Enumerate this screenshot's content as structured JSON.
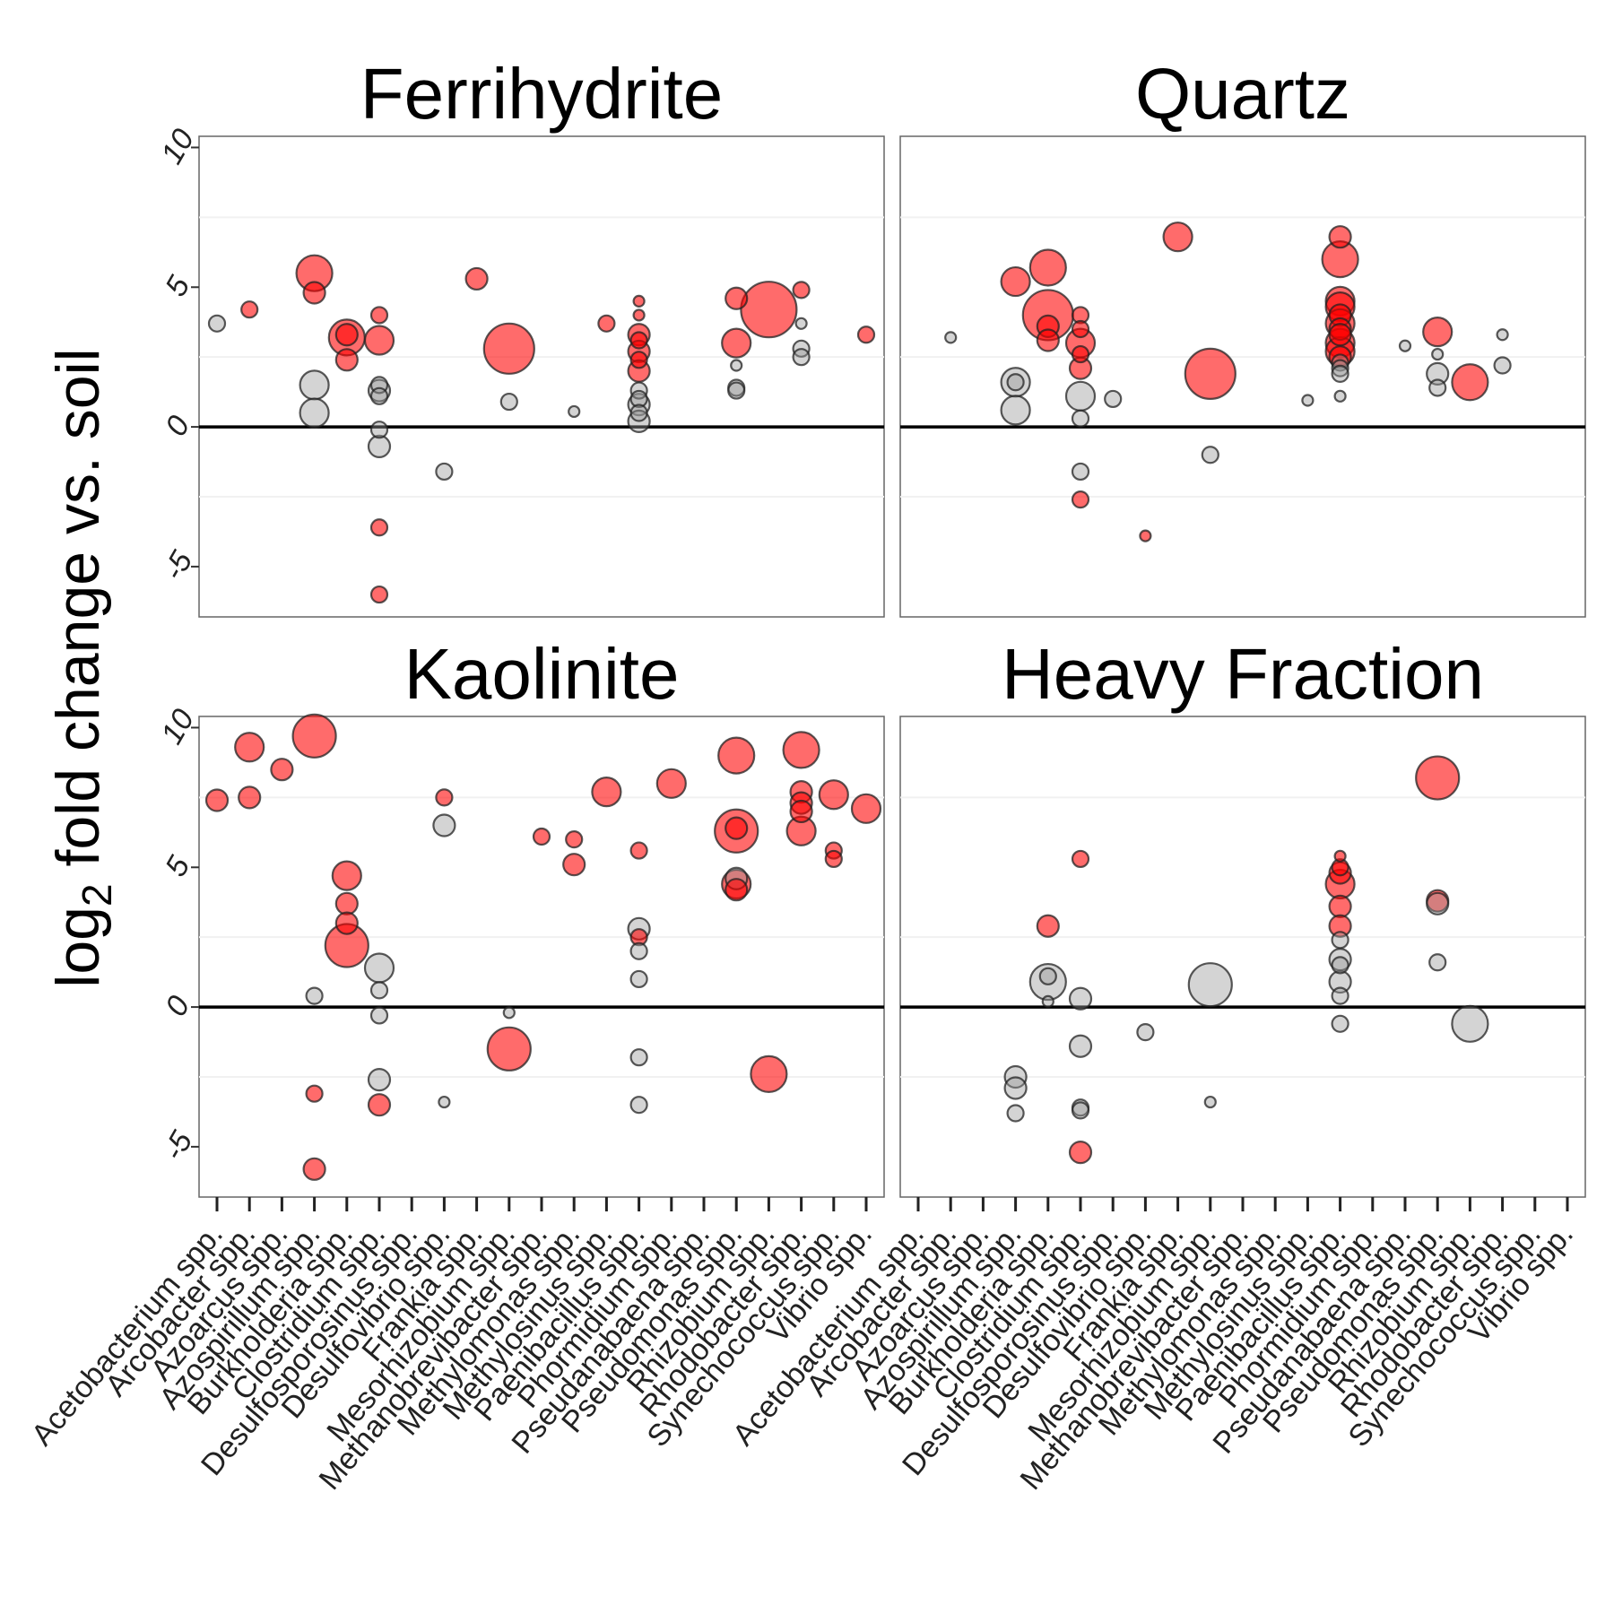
{
  "chart_data": {
    "type": "scatter",
    "y_axis_label": {
      "prefix": "log",
      "subscript": "2",
      "suffix": " fold change vs. soil"
    },
    "ylim": [
      -6.8,
      10.4
    ],
    "yticks": [
      -5,
      0,
      5,
      10
    ],
    "gridlines_minor": [
      -2.5,
      2.5,
      7.5
    ],
    "categories": [
      "Acetobacterium spp.",
      "Arcobacter spp.",
      "Azoarcus spp.",
      "Azospirillum spp.",
      "Burkholderia spp.",
      "Clostridium spp.",
      "Desulfosporosinus spp.",
      "Desulfovibrio spp.",
      "Frankia spp.",
      "Mesorhizobium spp.",
      "Methanobrevibacter spp.",
      "Methylomonas spp.",
      "Methylosinus spp.",
      "Paenibacillus spp.",
      "Phormidium spp.",
      "Pseudanabaena spp.",
      "Pseudomonas spp.",
      "Rhizobium spp.",
      "Rhodobacter spp.",
      "Synechococcus spp.",
      "Vibrio spp."
    ],
    "colors": {
      "significant": "#ff0000",
      "not_significant": "#999999"
    },
    "panels": [
      {
        "title": "Ferrihydrite",
        "points": [
          [
            0,
            3.7,
            1,
            0
          ],
          [
            1,
            4.2,
            1,
            1
          ],
          [
            3,
            5.5,
            4,
            1
          ],
          [
            3,
            4.8,
            2,
            1
          ],
          [
            3,
            1.5,
            3,
            0
          ],
          [
            3,
            0.5,
            3,
            0
          ],
          [
            4,
            3.2,
            4,
            1
          ],
          [
            4,
            3.3,
            2,
            1
          ],
          [
            4,
            2.4,
            2,
            1
          ],
          [
            5,
            4.0,
            1,
            1
          ],
          [
            5,
            3.1,
            3,
            1
          ],
          [
            5,
            1.5,
            1,
            0
          ],
          [
            5,
            1.3,
            2,
            0
          ],
          [
            5,
            1.1,
            1,
            0
          ],
          [
            5,
            -0.1,
            1,
            0
          ],
          [
            5,
            -0.7,
            2,
            0
          ],
          [
            5,
            -3.6,
            1,
            1
          ],
          [
            5,
            -6.0,
            1,
            1
          ],
          [
            7,
            -1.6,
            1,
            0
          ],
          [
            8,
            5.3,
            2,
            1
          ],
          [
            9,
            2.8,
            6,
            1
          ],
          [
            9,
            0.9,
            1,
            0
          ],
          [
            11,
            0.55,
            0,
            0
          ],
          [
            12,
            3.7,
            1,
            1
          ],
          [
            13,
            4.5,
            0,
            1
          ],
          [
            13,
            4.0,
            0,
            1
          ],
          [
            13,
            3.3,
            2,
            1
          ],
          [
            13,
            3.1,
            1,
            1
          ],
          [
            13,
            2.7,
            2,
            1
          ],
          [
            13,
            2.4,
            1,
            1
          ],
          [
            13,
            2.0,
            2,
            1
          ],
          [
            13,
            1.3,
            1,
            0
          ],
          [
            13,
            1.0,
            1,
            0
          ],
          [
            13,
            0.8,
            2,
            0
          ],
          [
            13,
            0.5,
            1,
            0
          ],
          [
            13,
            0.2,
            2,
            0
          ],
          [
            16,
            4.6,
            2,
            1
          ],
          [
            16,
            3.0,
            3,
            1
          ],
          [
            16,
            2.2,
            0,
            0
          ],
          [
            16,
            1.4,
            1,
            0
          ],
          [
            16,
            1.3,
            1,
            0
          ],
          [
            17,
            4.2,
            7,
            1
          ],
          [
            18,
            4.9,
            1,
            1
          ],
          [
            18,
            3.7,
            0,
            0
          ],
          [
            18,
            2.8,
            1,
            0
          ],
          [
            18,
            2.5,
            1,
            0
          ],
          [
            20,
            3.3,
            1,
            1
          ]
        ]
      },
      {
        "title": "Quartz",
        "points": [
          [
            1,
            3.2,
            0,
            0
          ],
          [
            3,
            5.2,
            3,
            1
          ],
          [
            3,
            1.6,
            3,
            0
          ],
          [
            3,
            0.6,
            3,
            0
          ],
          [
            3,
            1.6,
            1,
            0
          ],
          [
            4,
            5.7,
            4,
            1
          ],
          [
            4,
            4.0,
            6,
            1
          ],
          [
            4,
            3.6,
            2,
            1
          ],
          [
            4,
            3.1,
            2,
            1
          ],
          [
            5,
            4.0,
            1,
            1
          ],
          [
            5,
            3.5,
            1,
            1
          ],
          [
            5,
            3.0,
            3,
            1
          ],
          [
            5,
            2.6,
            1,
            1
          ],
          [
            5,
            2.1,
            2,
            1
          ],
          [
            5,
            1.1,
            3,
            0
          ],
          [
            5,
            0.3,
            1,
            0
          ],
          [
            5,
            -1.6,
            1,
            0
          ],
          [
            5,
            -2.6,
            1,
            1
          ],
          [
            6,
            1.0,
            1,
            0
          ],
          [
            7,
            -3.9,
            0,
            1
          ],
          [
            8,
            6.8,
            3,
            1
          ],
          [
            9,
            1.9,
            6,
            1
          ],
          [
            9,
            -1.0,
            1,
            0
          ],
          [
            12,
            0.95,
            0,
            0
          ],
          [
            13,
            6.8,
            2,
            1
          ],
          [
            13,
            6.0,
            4,
            1
          ],
          [
            13,
            4.5,
            3,
            1
          ],
          [
            13,
            4.3,
            3,
            1
          ],
          [
            13,
            4.0,
            2,
            1
          ],
          [
            13,
            3.7,
            3,
            1
          ],
          [
            13,
            3.5,
            2,
            1
          ],
          [
            13,
            3.3,
            2,
            1
          ],
          [
            13,
            3.0,
            3,
            1
          ],
          [
            13,
            2.7,
            3,
            1
          ],
          [
            13,
            2.5,
            2,
            1
          ],
          [
            13,
            2.3,
            1,
            0
          ],
          [
            13,
            2.1,
            1,
            0
          ],
          [
            13,
            1.9,
            1,
            0
          ],
          [
            13,
            1.1,
            0,
            0
          ],
          [
            15,
            2.9,
            0,
            0
          ],
          [
            16,
            3.4,
            3,
            1
          ],
          [
            16,
            2.6,
            0,
            0
          ],
          [
            16,
            1.9,
            2,
            0
          ],
          [
            16,
            1.4,
            1,
            0
          ],
          [
            17,
            1.6,
            4,
            1
          ],
          [
            18,
            3.3,
            0,
            0
          ],
          [
            18,
            2.2,
            1,
            0
          ]
        ]
      },
      {
        "title": "Kaolinite",
        "points": [
          [
            0,
            7.4,
            2,
            1
          ],
          [
            1,
            9.3,
            3,
            1
          ],
          [
            1,
            7.5,
            2,
            1
          ],
          [
            2,
            8.5,
            2,
            1
          ],
          [
            3,
            9.7,
            5,
            1
          ],
          [
            3,
            0.4,
            1,
            0
          ],
          [
            3,
            -3.1,
            1,
            1
          ],
          [
            3,
            -5.8,
            2,
            1
          ],
          [
            4,
            4.7,
            3,
            1
          ],
          [
            4,
            3.7,
            2,
            1
          ],
          [
            4,
            3.0,
            2,
            1
          ],
          [
            4,
            2.2,
            5,
            1
          ],
          [
            5,
            1.4,
            3,
            0
          ],
          [
            5,
            0.6,
            1,
            0
          ],
          [
            5,
            -0.3,
            1,
            0
          ],
          [
            5,
            -2.6,
            2,
            0
          ],
          [
            5,
            -3.5,
            2,
            1
          ],
          [
            7,
            7.5,
            1,
            1
          ],
          [
            7,
            6.5,
            2,
            0
          ],
          [
            7,
            -3.4,
            0,
            0
          ],
          [
            9,
            -0.2,
            0,
            0
          ],
          [
            9,
            -1.5,
            5,
            1
          ],
          [
            10,
            6.1,
            1,
            1
          ],
          [
            11,
            6.0,
            1,
            1
          ],
          [
            11,
            5.1,
            2,
            1
          ],
          [
            12,
            7.7,
            3,
            1
          ],
          [
            13,
            5.6,
            1,
            1
          ],
          [
            13,
            2.8,
            2,
            0
          ],
          [
            13,
            2.5,
            1,
            1
          ],
          [
            13,
            2.0,
            1,
            0
          ],
          [
            13,
            1.0,
            1,
            0
          ],
          [
            13,
            -1.8,
            1,
            0
          ],
          [
            13,
            -3.5,
            1,
            0
          ],
          [
            14,
            8.0,
            3,
            1
          ],
          [
            16,
            9.0,
            4,
            1
          ],
          [
            16,
            6.4,
            2,
            1
          ],
          [
            16,
            6.3,
            5,
            1
          ],
          [
            16,
            4.6,
            2,
            0
          ],
          [
            16,
            4.4,
            3,
            1
          ],
          [
            16,
            4.2,
            2,
            1
          ],
          [
            17,
            -2.4,
            4,
            1
          ],
          [
            18,
            9.2,
            4,
            1
          ],
          [
            18,
            7.7,
            2,
            1
          ],
          [
            18,
            7.3,
            2,
            1
          ],
          [
            18,
            7.0,
            2,
            1
          ],
          [
            18,
            6.3,
            3,
            1
          ],
          [
            19,
            7.6,
            3,
            1
          ],
          [
            19,
            5.6,
            1,
            1
          ],
          [
            19,
            5.3,
            1,
            1
          ],
          [
            20,
            7.1,
            3,
            1
          ]
        ]
      },
      {
        "title": "Heavy Fraction",
        "points": [
          [
            3,
            -2.5,
            2,
            0
          ],
          [
            3,
            -2.9,
            2,
            0
          ],
          [
            3,
            -3.8,
            1,
            0
          ],
          [
            4,
            2.9,
            2,
            1
          ],
          [
            4,
            0.9,
            4,
            0
          ],
          [
            4,
            1.1,
            1,
            0
          ],
          [
            4,
            0.2,
            0,
            0
          ],
          [
            5,
            5.3,
            1,
            1
          ],
          [
            5,
            0.3,
            2,
            0
          ],
          [
            5,
            -1.4,
            2,
            0
          ],
          [
            5,
            -3.6,
            1,
            0
          ],
          [
            5,
            -3.7,
            1,
            0
          ],
          [
            5,
            -5.2,
            2,
            1
          ],
          [
            7,
            -0.9,
            1,
            0
          ],
          [
            9,
            0.8,
            5,
            0
          ],
          [
            9,
            -3.4,
            0,
            0
          ],
          [
            13,
            5.4,
            0,
            1
          ],
          [
            13,
            5.0,
            1,
            1
          ],
          [
            13,
            4.8,
            2,
            1
          ],
          [
            13,
            4.4,
            3,
            1
          ],
          [
            13,
            3.6,
            2,
            1
          ],
          [
            13,
            2.9,
            2,
            1
          ],
          [
            13,
            2.4,
            1,
            0
          ],
          [
            13,
            1.7,
            2,
            0
          ],
          [
            13,
            1.5,
            1,
            0
          ],
          [
            13,
            0.9,
            2,
            0
          ],
          [
            13,
            0.4,
            1,
            0
          ],
          [
            13,
            -0.6,
            1,
            0
          ],
          [
            16,
            8.2,
            5,
            1
          ],
          [
            16,
            3.8,
            2,
            1
          ],
          [
            16,
            3.7,
            2,
            0
          ],
          [
            16,
            1.6,
            1,
            0
          ],
          [
            17,
            -0.6,
            4,
            0
          ]
        ]
      }
    ]
  }
}
